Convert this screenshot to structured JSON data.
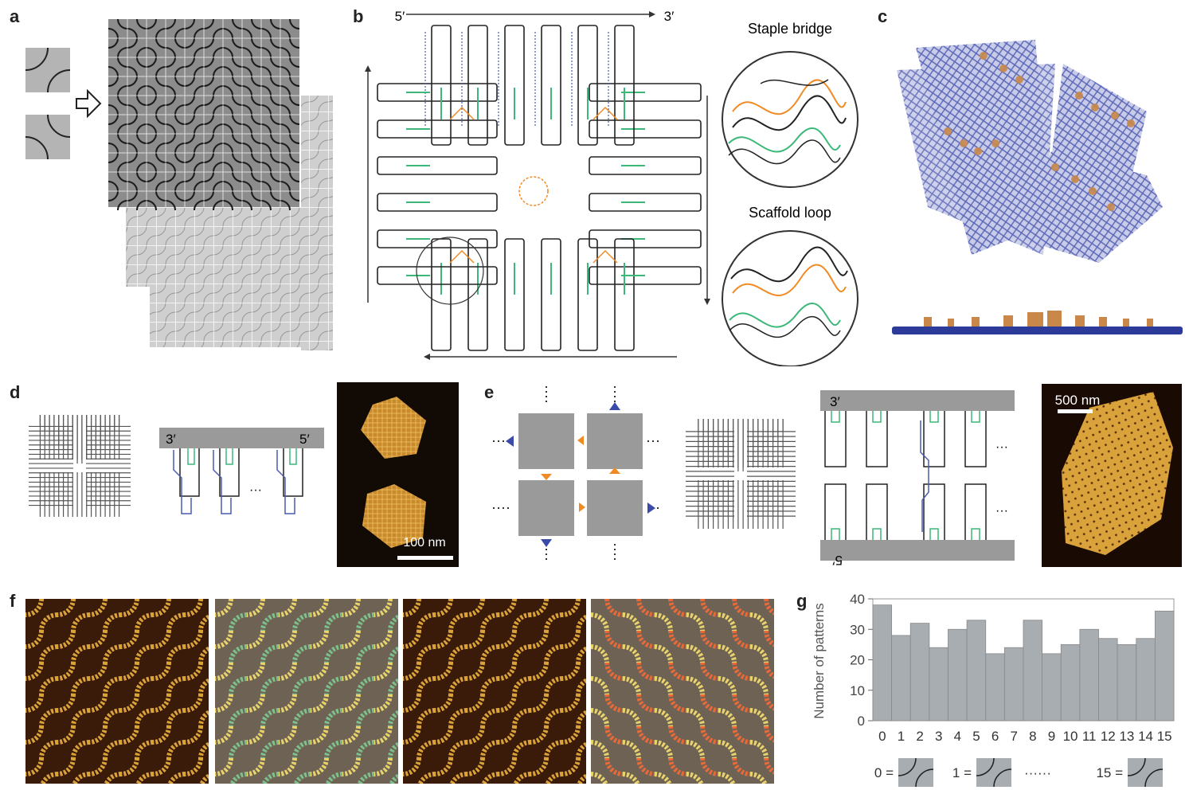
{
  "panel_labels": [
    "a",
    "b",
    "c",
    "d",
    "e",
    "f",
    "g"
  ],
  "panel_b": {
    "five_prime": "5′",
    "three_prime": "3′",
    "staple_bridge": "Staple bridge",
    "scaffold_loop": "Scaffold loop"
  },
  "panel_d": {
    "three_prime": "3′",
    "five_prime": "5′",
    "ellipsis": "···",
    "scale_bar": "100 nm"
  },
  "panel_e": {
    "three_prime": "3′",
    "five_prime": "5′",
    "scale_bar": "500 nm",
    "ellipsis": "···"
  },
  "colors": {
    "tile_gray": "#9a9a9a",
    "staple_green": "#3cb878",
    "staple_blue": "#4a5bb0",
    "scaffold_orange": "#f08a24",
    "afm_dark": "#3a1a08",
    "afm_gold": "#d9a23a"
  },
  "chart_data": {
    "type": "bar",
    "categories": [
      "0",
      "1",
      "2",
      "3",
      "4",
      "5",
      "6",
      "7",
      "8",
      "9",
      "10",
      "11",
      "12",
      "13",
      "14",
      "15"
    ],
    "values": [
      38,
      28,
      32,
      24,
      30,
      33,
      22,
      24,
      33,
      22,
      25,
      30,
      27,
      25,
      27,
      36
    ],
    "ylabel": "Number of patterns",
    "ylim": [
      0,
      40
    ],
    "yticks": [
      "0",
      "10",
      "20",
      "30",
      "40"
    ],
    "legend": [
      "0 =",
      "1 =",
      "······",
      "15 ="
    ],
    "grid": false
  }
}
